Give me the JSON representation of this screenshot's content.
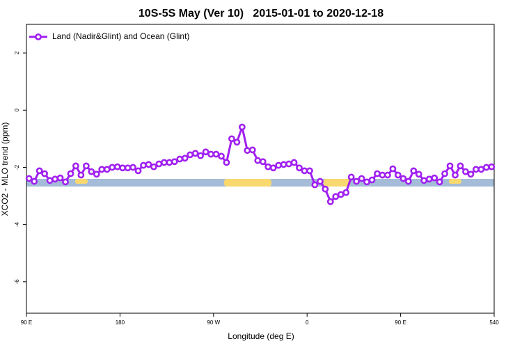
{
  "chart_data": {
    "type": "line",
    "title": "10S-5S May (Ver 10)   2015-01-01 to 2020-12-18",
    "x_label": "Longitude (deg E)",
    "y_label": "XCO2 - MLO trend (ppm)",
    "xlim": [
      90,
      540
    ],
    "ylim": [
      -7.1,
      3.0
    ],
    "xticks": [
      {
        "value": 90,
        "label": "90 E"
      },
      180,
      {
        "value": 270,
        "label": "90 W"
      },
      {
        "value": 360,
        "label": "0"
      },
      {
        "value": 450,
        "label": "90 E"
      },
      540
    ],
    "yticks": [
      2,
      0,
      -2,
      -4,
      -6
    ],
    "legend": "topleft",
    "x": [
      92.5,
      97.5,
      102.5,
      107.5,
      112.5,
      117.5,
      122.5,
      127.5,
      132.5,
      137.5,
      142.5,
      147.5,
      152.5,
      157.5,
      162.5,
      167.5,
      172.5,
      177.5,
      182.5,
      187.5,
      192.5,
      197.5,
      202.5,
      207.5,
      212.5,
      217.5,
      222.5,
      227.5,
      232.5,
      237.5,
      242.5,
      247.5,
      252.5,
      257.5,
      262.5,
      267.5,
      272.5,
      277.5,
      282.5,
      287.5,
      292.5,
      297.5,
      302.5,
      307.5,
      312.5,
      317.5,
      322.5,
      327.5,
      332.5,
      337.5,
      342.5,
      347.5,
      352.5,
      357.5,
      362.5,
      367.5,
      372.5,
      377.5,
      382.5,
      387.5,
      392.5,
      397.5,
      402.5,
      407.5,
      412.5,
      417.5,
      422.5,
      427.5,
      432.5,
      437.5,
      442.5,
      447.5,
      452.5,
      457.5,
      462.5,
      467.5,
      472.5,
      477.5,
      482.5,
      487.5,
      492.5,
      497.5,
      502.5,
      507.5,
      512.5,
      517.5,
      522.5,
      527.5,
      532.5,
      537.5
    ],
    "series": [
      {
        "name": "Land (Nadir&Glint) and Ocean (Glint)",
        "color": "#a020f0",
        "values": [
          -2.39,
          -2.49,
          -2.12,
          -2.22,
          -2.46,
          -2.41,
          -2.37,
          -2.51,
          -2.22,
          -1.95,
          -2.27,
          -1.95,
          -2.15,
          -2.24,
          -2.07,
          -2.07,
          -2.0,
          -1.98,
          -2.02,
          -2.02,
          -2.0,
          -2.12,
          -1.93,
          -1.9,
          -1.98,
          -1.88,
          -1.83,
          -1.83,
          -1.8,
          -1.71,
          -1.68,
          -1.56,
          -1.51,
          -1.59,
          -1.46,
          -1.54,
          -1.54,
          -1.61,
          -1.83,
          -1.0,
          -1.12,
          -0.59,
          -1.41,
          -1.39,
          -1.76,
          -1.8,
          -1.98,
          -2.02,
          -1.93,
          -1.9,
          -1.88,
          -1.83,
          -2.02,
          -2.12,
          -2.12,
          -2.61,
          -2.49,
          -2.76,
          -3.2,
          -3.02,
          -2.95,
          -2.88,
          -2.34,
          -2.49,
          -2.39,
          -2.51,
          -2.44,
          -2.22,
          -2.27,
          -2.27,
          -2.05,
          -2.27,
          -2.39,
          -2.49,
          -2.12,
          -2.24,
          -2.46,
          -2.41,
          -2.37,
          -2.51,
          -2.22,
          -1.95,
          -2.27,
          -1.95,
          -2.15,
          -2.24,
          -2.07,
          -2.07,
          -2.0,
          -1.98
        ]
      }
    ]
  }
}
